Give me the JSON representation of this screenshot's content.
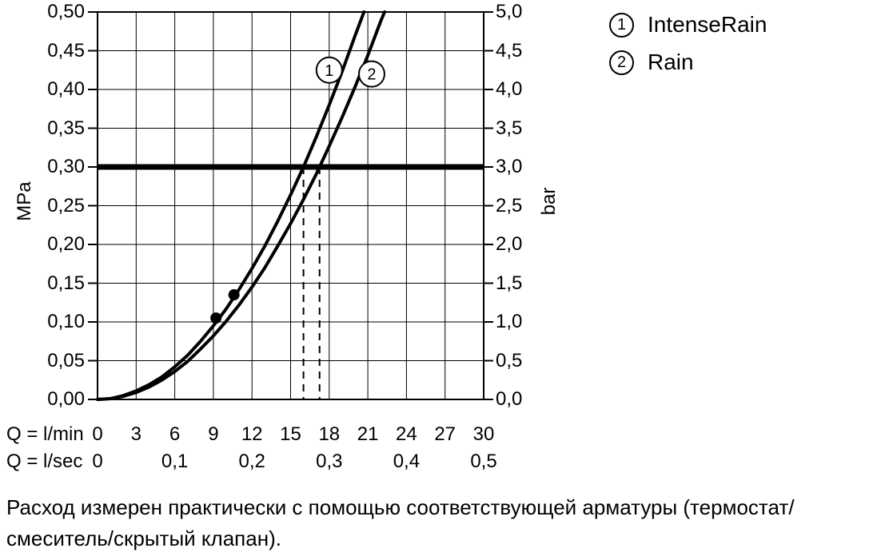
{
  "chart_data": {
    "type": "line",
    "title": "",
    "grid": true,
    "x_axis": {
      "title_primary": "Q = l/min",
      "title_secondary": "Q = l/sec",
      "min": 0,
      "max": 30,
      "ticks_primary": [
        "0",
        "3",
        "6",
        "9",
        "12",
        "15",
        "18",
        "21",
        "24",
        "27",
        "30"
      ],
      "ticks_secondary": [
        "0",
        "0,1",
        "0,2",
        "0,3",
        "0,4",
        "0,5"
      ]
    },
    "y_axis_left": {
      "title": "MPa",
      "min": 0,
      "max": 0.5,
      "ticks": [
        "0,50",
        "0,45",
        "0,40",
        "0,35",
        "0,30",
        "0,25",
        "0,20",
        "0,15",
        "0,10",
        "0,05",
        "0,00"
      ]
    },
    "y_axis_right": {
      "title": "bar",
      "min": 0,
      "max": 5.0,
      "ticks": [
        "5,0",
        "4,5",
        "4,0",
        "3,5",
        "3,0",
        "2,5",
        "2,0",
        "1,5",
        "1,0",
        "0,5",
        "0,0"
      ]
    },
    "reference_line_mpa": 0.3,
    "dashed_guides_q_lmin": [
      16.0,
      17.25
    ],
    "operating_points": [
      {
        "q_lmin": 9.2,
        "p_mpa": 0.105
      },
      {
        "q_lmin": 10.6,
        "p_mpa": 0.135
      }
    ],
    "series": [
      {
        "marker": "1",
        "name": "IntenseRain",
        "label_pos": {
          "q": 18.0,
          "p": 0.425
        },
        "points": [
          [
            0,
            0
          ],
          [
            1,
            0.001
          ],
          [
            2,
            0.005
          ],
          [
            3,
            0.011
          ],
          [
            4,
            0.019
          ],
          [
            5,
            0.029
          ],
          [
            6,
            0.042
          ],
          [
            7,
            0.057
          ],
          [
            8,
            0.075
          ],
          [
            9,
            0.095
          ],
          [
            10,
            0.117
          ],
          [
            11,
            0.142
          ],
          [
            12,
            0.169
          ],
          [
            13,
            0.198
          ],
          [
            14,
            0.23
          ],
          [
            15,
            0.264
          ],
          [
            16,
            0.3
          ],
          [
            17,
            0.339
          ],
          [
            18,
            0.38
          ],
          [
            19,
            0.423
          ],
          [
            20,
            0.469
          ],
          [
            20.7,
            0.5
          ]
        ]
      },
      {
        "marker": "2",
        "name": "Rain",
        "label_pos": {
          "q": 21.3,
          "p": 0.42
        },
        "points": [
          [
            0,
            0
          ],
          [
            1,
            0.001
          ],
          [
            2,
            0.004
          ],
          [
            3,
            0.009
          ],
          [
            4,
            0.016
          ],
          [
            5,
            0.025
          ],
          [
            6,
            0.036
          ],
          [
            7,
            0.049
          ],
          [
            8,
            0.065
          ],
          [
            9,
            0.082
          ],
          [
            10,
            0.101
          ],
          [
            11,
            0.122
          ],
          [
            12,
            0.145
          ],
          [
            13,
            0.17
          ],
          [
            14,
            0.198
          ],
          [
            15,
            0.227
          ],
          [
            16,
            0.258
          ],
          [
            17,
            0.291
          ],
          [
            17.25,
            0.3
          ],
          [
            18,
            0.327
          ],
          [
            19,
            0.364
          ],
          [
            20,
            0.403
          ],
          [
            21,
            0.444
          ],
          [
            22,
            0.488
          ],
          [
            22.3,
            0.5
          ]
        ]
      }
    ]
  },
  "note": {
    "line1": "Расход измерен практически с помощью соответствующей арматуры (термостат/",
    "line2": "смеситель/скрытый клапан)."
  }
}
